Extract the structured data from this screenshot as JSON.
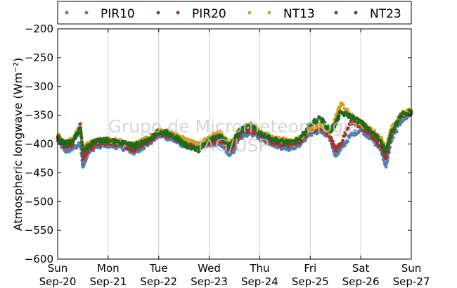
{
  "chart_data": {
    "type": "scatter",
    "ylabel": "Atmospheric longwave (Wm⁻²)",
    "ylim": [
      -600,
      -200
    ],
    "yticks": [
      -200,
      -250,
      -300,
      -350,
      -400,
      -450,
      -500,
      -550,
      -600
    ],
    "xlim": [
      0,
      7
    ],
    "xticks": [
      {
        "day": "Sun",
        "date": "Sep-20"
      },
      {
        "day": "Mon",
        "date": "Sep-21"
      },
      {
        "day": "Tue",
        "date": "Sep-22"
      },
      {
        "day": "Wed",
        "date": "Sep-23"
      },
      {
        "day": "Thu",
        "date": "Sep-24"
      },
      {
        "day": "Fri",
        "date": "Sep-25"
      },
      {
        "day": "Sat",
        "date": "Sep-26"
      },
      {
        "day": "Sun",
        "date": "Sep-27"
      }
    ],
    "grid": true,
    "legend_position": "top",
    "watermark": [
      "Grupo de Micrometeorologia",
      "IAG/USP"
    ],
    "series": [
      {
        "name": "PIR10",
        "color": "#4f81b3",
        "x": [
          0,
          0.15,
          0.3,
          0.45,
          0.5,
          0.6,
          0.75,
          0.9,
          1.0,
          1.2,
          1.4,
          1.5,
          1.6,
          1.8,
          2.0,
          2.2,
          2.4,
          2.5,
          2.6,
          2.8,
          3.0,
          3.2,
          3.3,
          3.4,
          3.5,
          3.6,
          3.8,
          4.0,
          4.2,
          4.4,
          4.6,
          4.8,
          5.0,
          5.2,
          5.4,
          5.5,
          5.6,
          5.8,
          6.0,
          6.2,
          6.4,
          6.5,
          6.6,
          6.8,
          7.0
        ],
        "y": [
          -395,
          -412,
          -408,
          -400,
          -440,
          -415,
          -405,
          -402,
          -402,
          -405,
          -410,
          -415,
          -410,
          -400,
          -385,
          -390,
          -398,
          -402,
          -404,
          -405,
          -402,
          -398,
          -405,
          -420,
          -410,
          -390,
          -380,
          -390,
          -398,
          -405,
          -408,
          -400,
          -382,
          -378,
          -392,
          -420,
          -410,
          -385,
          -375,
          -390,
          -410,
          -440,
          -395,
          -360,
          -348
        ]
      },
      {
        "name": "PIR20",
        "color": "#a83232",
        "x": [
          0,
          0.15,
          0.3,
          0.45,
          0.5,
          0.6,
          0.75,
          0.9,
          1.0,
          1.2,
          1.4,
          1.5,
          1.6,
          1.8,
          2.0,
          2.2,
          2.4,
          2.5,
          2.6,
          2.8,
          3.0,
          3.2,
          3.3,
          3.4,
          3.5,
          3.6,
          3.8,
          4.0,
          4.2,
          4.4,
          4.6,
          4.8,
          5.0,
          5.2,
          5.4,
          5.5,
          5.6,
          5.8,
          6.0,
          6.2,
          6.4,
          6.5,
          6.6,
          6.8,
          7.0
        ],
        "y": [
          -390,
          -405,
          -400,
          -365,
          -425,
          -410,
          -400,
          -398,
          -398,
          -400,
          -405,
          -410,
          -405,
          -395,
          -380,
          -385,
          -392,
          -398,
          -400,
          -405,
          -398,
          -392,
          -400,
          -410,
          -400,
          -385,
          -375,
          -385,
          -395,
          -400,
          -402,
          -395,
          -378,
          -372,
          -388,
          -410,
          -400,
          -360,
          -370,
          -385,
          -405,
          -425,
          -385,
          -350,
          -345
        ]
      },
      {
        "name": "NT13",
        "color": "#d4a020",
        "x": [
          0,
          0.15,
          0.3,
          0.45,
          0.5,
          0.6,
          0.75,
          0.9,
          1.0,
          1.2,
          1.4,
          1.5,
          1.6,
          1.8,
          2.0,
          2.2,
          2.4,
          2.5,
          2.6,
          2.8,
          3.0,
          3.2,
          3.3,
          3.4,
          3.5,
          3.6,
          3.8,
          4.0,
          4.2,
          4.4,
          4.6,
          4.8,
          5.0,
          5.2,
          5.4,
          5.5,
          5.6,
          5.8,
          6.0,
          6.2,
          6.4,
          6.5,
          6.6,
          6.8,
          7.0
        ],
        "y": [
          -385,
          -398,
          -392,
          -370,
          -410,
          -400,
          -395,
          -392,
          -392,
          -395,
          -398,
          -402,
          -398,
          -390,
          -375,
          -380,
          -388,
          -392,
          -395,
          -400,
          -390,
          -380,
          -388,
          -402,
          -390,
          -375,
          -365,
          -378,
          -388,
          -392,
          -395,
          -390,
          -372,
          -365,
          -380,
          -355,
          -330,
          -350,
          -365,
          -375,
          -390,
          -410,
          -375,
          -348,
          -342
        ]
      },
      {
        "name": "NT23",
        "color": "#1e6b1e",
        "x": [
          0,
          0.15,
          0.3,
          0.45,
          0.5,
          0.6,
          0.75,
          0.9,
          1.0,
          1.2,
          1.4,
          1.5,
          1.6,
          1.8,
          2.0,
          2.2,
          2.4,
          2.5,
          2.6,
          2.8,
          3.0,
          3.2,
          3.3,
          3.4,
          3.5,
          3.6,
          3.8,
          4.0,
          4.2,
          4.4,
          4.6,
          4.8,
          5.0,
          5.2,
          5.4,
          5.5,
          5.6,
          5.8,
          6.0,
          6.2,
          6.4,
          6.5,
          6.6,
          6.8,
          7.0
        ],
        "y": [
          -388,
          -400,
          -395,
          -372,
          -412,
          -402,
          -396,
          -394,
          -394,
          -396,
          -400,
          -404,
          -400,
          -392,
          -378,
          -382,
          -392,
          -400,
          -405,
          -410,
          -394,
          -385,
          -392,
          -405,
          -392,
          -378,
          -368,
          -380,
          -390,
          -395,
          -398,
          -392,
          -365,
          -355,
          -378,
          -365,
          -345,
          -352,
          -362,
          -378,
          -395,
          -415,
          -380,
          -350,
          -344
        ]
      }
    ]
  }
}
